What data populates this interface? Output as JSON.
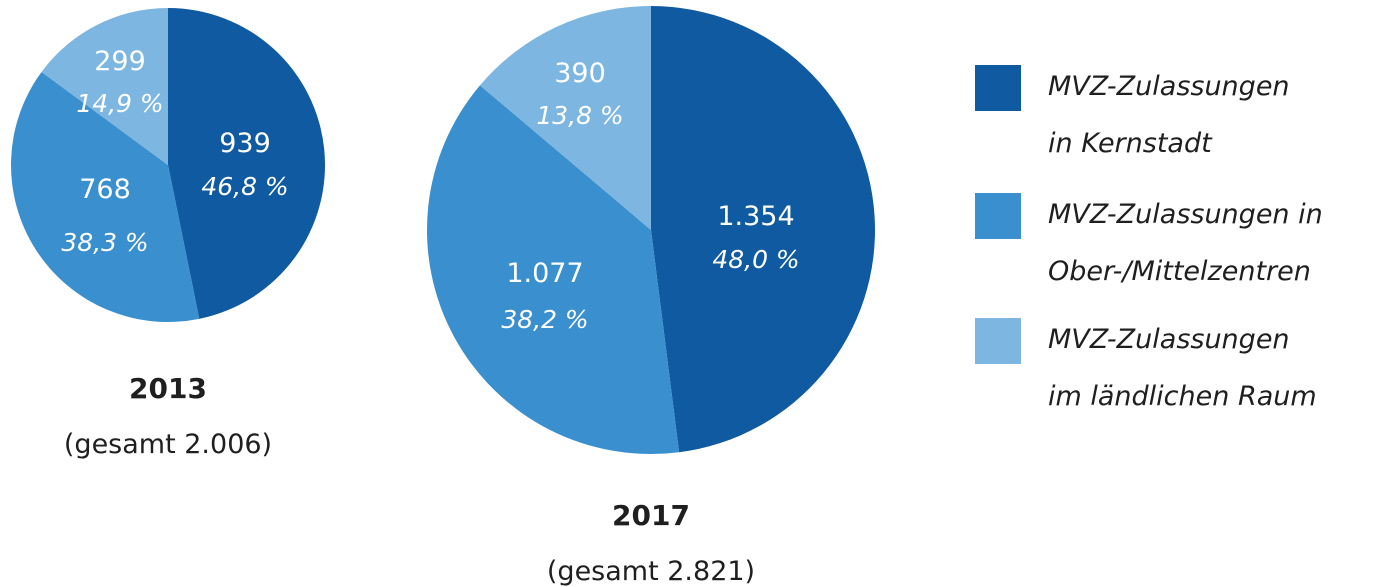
{
  "chart_data": [
    {
      "type": "pie",
      "title": "2013",
      "subtitle": "(gesamt 2.006)",
      "slices": [
        {
          "name": "MVZ-Zulassungen in Kernstadt",
          "value": 939,
          "value_label": "939",
          "percent_label": "46,8 %",
          "color": "#0f5aa0"
        },
        {
          "name": "MVZ-Zulassungen in Ober-/Mittelzentren",
          "value": 768,
          "value_label": "768",
          "percent_label": "38,3 %",
          "color": "#3a8fce"
        },
        {
          "name": "MVZ-Zulassungen im ländlichen Raum",
          "value": 299,
          "value_label": "299",
          "percent_label": "14,9 %",
          "color": "#7db6e1"
        }
      ]
    },
    {
      "type": "pie",
      "title": "2017",
      "subtitle": "(gesamt 2.821)",
      "slices": [
        {
          "name": "MVZ-Zulassungen in Kernstadt",
          "value": 1354,
          "value_label": "1.354",
          "percent_label": "48,0 %",
          "color": "#0f5aa0"
        },
        {
          "name": "MVZ-Zulassungen in Ober-/Mittelzentren",
          "value": 1077,
          "value_label": "1.077",
          "percent_label": "38,2 %",
          "color": "#3a8fce"
        },
        {
          "name": "MVZ-Zulassungen im ländlichen Raum",
          "value": 390,
          "value_label": "390",
          "percent_label": "13,8 %",
          "color": "#7db6e1"
        }
      ]
    }
  ],
  "legend": [
    {
      "lines": [
        "MVZ-Zulassungen",
        "in Kernstadt"
      ],
      "color": "#0f5aa0"
    },
    {
      "lines": [
        "MVZ-Zulassungen in",
        "Ober-/Mittelzentren"
      ],
      "color": "#3a8fce"
    },
    {
      "lines": [
        "MVZ-Zulassungen",
        "im ländlichen Raum"
      ],
      "color": "#7db6e1"
    }
  ]
}
